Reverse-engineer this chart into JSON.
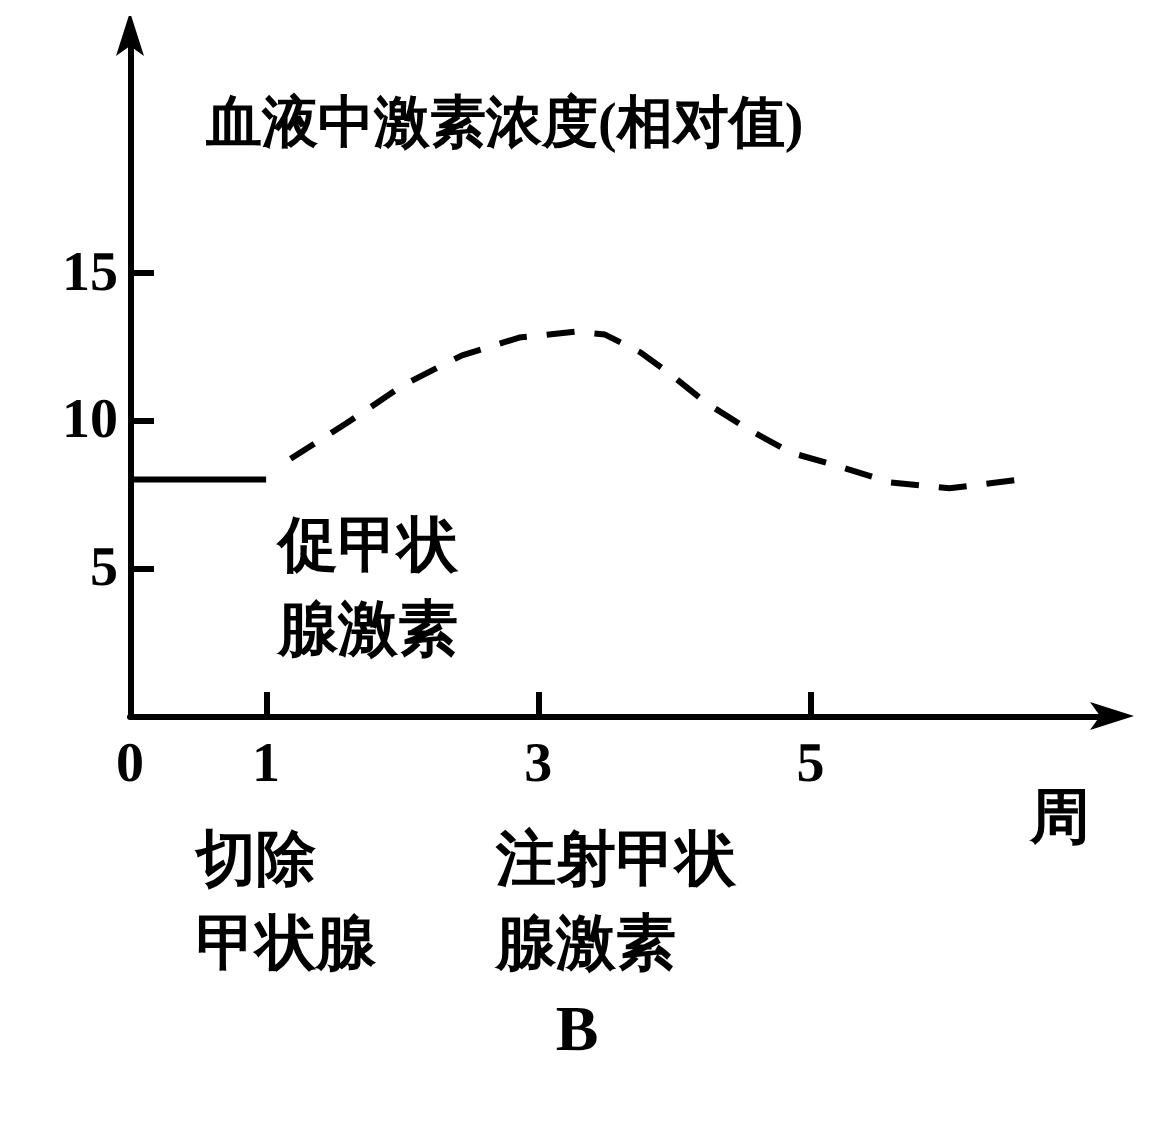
{
  "chart_data": {
    "type": "line",
    "title": "B",
    "ylabel": "血液中激素浓度(相对值)",
    "xlabel": "周",
    "xlim": [
      0,
      7.2
    ],
    "xticks": [
      0,
      1,
      3,
      5
    ],
    "ylim": [
      0,
      23
    ],
    "yticks": [
      5,
      10,
      15
    ],
    "grid": false,
    "marker": "none",
    "series": [
      {
        "color": "#000000",
        "line_style": "solid",
        "x": [
          0,
          1
        ],
        "values": [
          8,
          8
        ]
      },
      {
        "color": "#000000",
        "line_style": "dashed",
        "x": [
          1.18,
          1.59,
          2.01,
          2.44,
          2.86,
          3.28,
          3.49,
          3.75,
          3.96,
          4.23,
          4.54,
          4.86,
          5.17,
          5.59,
          6.02,
          6.54
        ],
        "values": [
          8.7,
          9.9,
          11.2,
          12.2,
          12.8,
          13.0,
          12.9,
          12.3,
          11.6,
          10.6,
          9.7,
          8.9,
          8.5,
          7.9,
          7.7,
          8.0
        ]
      }
    ],
    "annotations": [
      "促甲状腺激素",
      "切除甲状腺",
      "注射甲状腺激素"
    ]
  }
}
